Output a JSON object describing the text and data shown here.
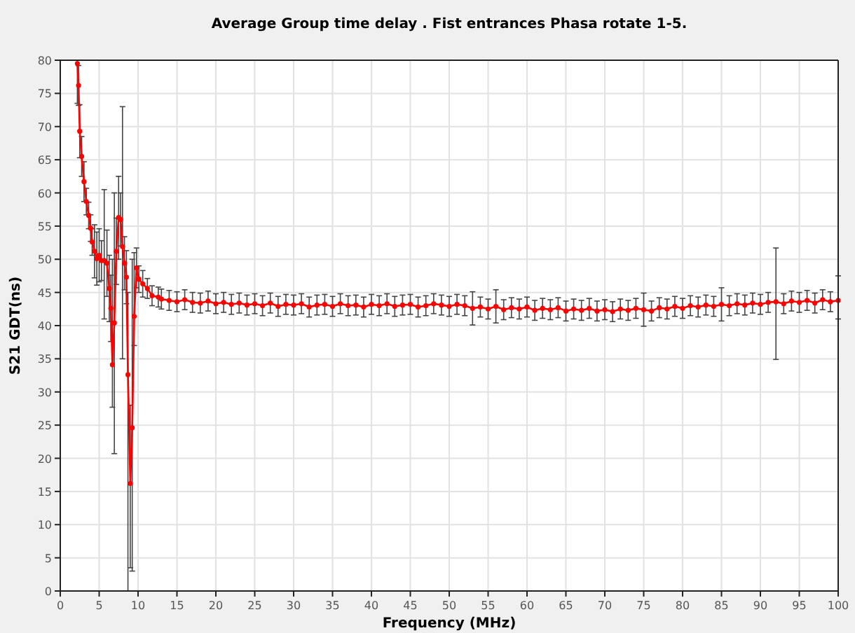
{
  "chart_data": {
    "type": "line",
    "title": "Average Group time delay . Fist entrances Phasa rotate 1-5.",
    "xlabel": "Frequency (MHz)",
    "ylabel": "S21 GDT(ns)",
    "x": [
      2.2,
      2.35,
      2.5,
      2.75,
      3.05,
      3.35,
      3.65,
      3.9,
      4.1,
      4.4,
      4.7,
      5.0,
      5.3,
      5.65,
      6.0,
      6.3,
      6.5,
      6.7,
      6.95,
      7.2,
      7.5,
      7.75,
      8.0,
      8.25,
      8.5,
      8.7,
      9.0,
      9.25,
      9.5,
      9.8,
      10.1,
      10.6,
      11.2,
      11.8,
      12.6,
      13,
      14,
      15,
      16,
      17,
      18,
      19,
      20,
      21,
      22,
      23,
      24,
      25,
      26,
      27,
      28,
      29,
      30,
      31,
      32,
      33,
      34,
      35,
      36,
      37,
      38,
      39,
      40,
      41,
      42,
      43,
      44,
      45,
      46,
      47,
      48,
      49,
      50,
      51,
      52,
      53,
      54,
      55,
      56,
      57,
      58,
      59,
      60,
      61,
      62,
      63,
      64,
      65,
      66,
      67,
      68,
      69,
      70,
      71,
      72,
      73,
      74,
      75,
      76,
      77,
      78,
      79,
      80,
      81,
      82,
      83,
      84,
      85,
      86,
      87,
      88,
      89,
      90,
      91,
      92,
      93,
      94,
      95,
      96,
      97,
      98,
      99,
      100
    ],
    "series": [
      {
        "color": "#ff0000",
        "values": [
          79.5,
          76.2,
          69.3,
          65.5,
          61.7,
          58.7,
          56.6,
          54.7,
          52.6,
          51.2,
          50.1,
          50.6,
          49.8,
          49.8,
          49.4,
          45.6,
          42.6,
          34.1,
          40.4,
          51.2,
          56.3,
          56,
          51.9,
          49.4,
          47.3,
          32.6,
          16.2,
          24.6,
          41.4,
          48.7,
          47,
          46.3,
          45.6,
          44.5,
          44.3,
          44.0,
          43.8,
          43.6,
          43.9,
          43.5,
          43.4,
          43.7,
          43.3,
          43.5,
          43.2,
          43.4,
          43.1,
          43.3,
          43.0,
          43.4,
          42.9,
          43.2,
          43.1,
          43.3,
          42.8,
          43.1,
          43.2,
          42.9,
          43.3,
          43.0,
          43.1,
          42.8,
          43.2,
          43.0,
          43.3,
          42.9,
          43.1,
          43.2,
          42.8,
          43.0,
          43.3,
          43.1,
          42.9,
          43.2,
          43.0,
          42.6,
          42.8,
          42.5,
          42.9,
          42.4,
          42.7,
          42.5,
          42.8,
          42.3,
          42.6,
          42.4,
          42.7,
          42.2,
          42.5,
          42.3,
          42.6,
          42.2,
          42.4,
          42.1,
          42.5,
          42.3,
          42.6,
          42.4,
          42.2,
          42.7,
          42.5,
          42.9,
          42.6,
          43.0,
          42.8,
          43.1,
          42.9,
          43.2,
          43.0,
          43.3,
          43.1,
          43.4,
          43.2,
          43.5,
          43.6,
          43.3,
          43.7,
          43.5,
          43.8,
          43.4,
          43.9,
          43.6,
          43.8
        ],
        "errors": [
          [
            73.5,
            80
          ],
          3,
          4,
          3,
          3,
          2,
          2,
          2,
          2,
          4,
          4,
          4,
          3,
          [
            41,
            60.5
          ],
          5,
          5,
          5,
          [
            27.7,
            50
          ],
          [
            20.7,
            60
          ],
          5,
          [
            50,
            62.5
          ],
          4,
          [
            35,
            73
          ],
          4,
          4,
          [
            0,
            45
          ],
          [
            3.5,
            28
          ],
          [
            3,
            50
          ],
          [
            37,
            51
          ],
          3,
          2,
          2,
          1.5,
          1.5,
          1.5,
          1.5,
          1.5,
          1.5,
          1.5,
          1.5,
          1.5,
          1.5,
          1.5,
          1.5,
          1.5,
          1.5,
          1.5,
          1.5,
          1.5,
          1.5,
          1.5,
          1.5,
          1.5,
          1.5,
          1.5,
          1.5,
          1.5,
          1.5,
          1.5,
          1.5,
          1.5,
          1.5,
          1.5,
          1.5,
          1.5,
          1.5,
          1.5,
          1.5,
          1.5,
          1.5,
          1.5,
          1.5,
          1.5,
          1.5,
          1.5,
          2.5,
          1.5,
          1.5,
          2.5,
          1.5,
          1.5,
          1.5,
          1.5,
          1.5,
          1.5,
          1.5,
          1.5,
          1.5,
          1.5,
          1.5,
          1.5,
          1.5,
          1.5,
          1.5,
          1.5,
          1.5,
          1.5,
          2.5,
          1.5,
          1.5,
          1.5,
          1.5,
          1.5,
          1.5,
          1.5,
          1.5,
          1.5,
          2.5,
          1.5,
          1.5,
          1.5,
          1.5,
          1.5,
          1.5,
          [
            34.9,
            51.7
          ],
          1.5,
          1.5,
          1.5,
          1.5,
          1.5,
          1.5,
          1.5,
          [
            41,
            47.5
          ]
        ]
      }
    ],
    "xlim": [
      0,
      100
    ],
    "xticks": [
      0,
      5,
      10,
      15,
      20,
      25,
      30,
      35,
      40,
      45,
      50,
      55,
      60,
      65,
      70,
      75,
      80,
      85,
      90,
      95,
      100
    ],
    "ylim": [
      0,
      80
    ],
    "yticks": [
      0,
      5,
      10,
      15,
      20,
      25,
      30,
      35,
      40,
      45,
      50,
      55,
      60,
      65,
      70,
      75,
      80
    ],
    "grid": true,
    "marker": "circle",
    "line_style": "solid"
  }
}
